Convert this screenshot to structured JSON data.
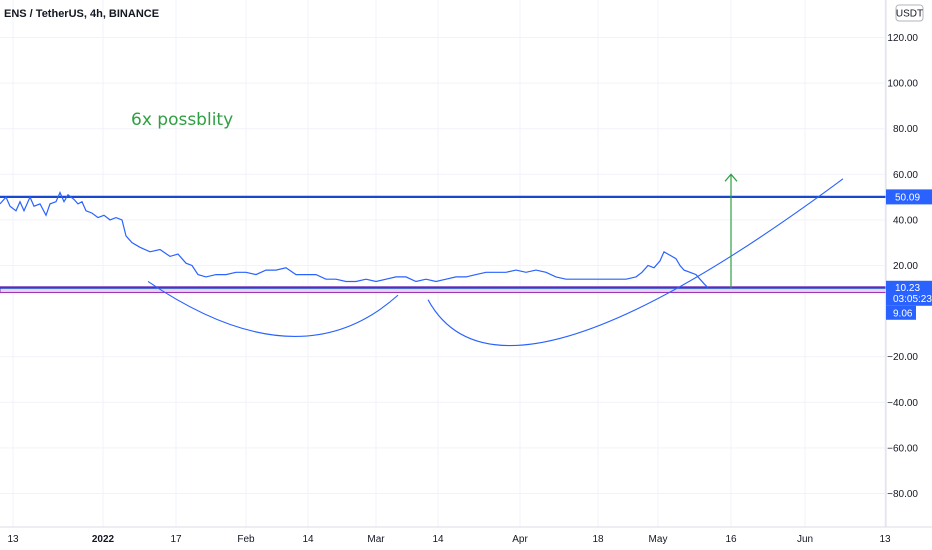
{
  "header": {
    "symbol_title": "ENS / TetherUS, 4h, BINANCE",
    "currency_button": "USDT"
  },
  "annotation": {
    "text": "6x possblity"
  },
  "price_tags": {
    "resistance": "50.09",
    "current": "10.23",
    "countdown": "03:05:23",
    "support": "9.06"
  },
  "colors": {
    "price_line": "#2962ff",
    "resistance_line": "#1848cc",
    "support_zone_fill": "#e6d6ee",
    "support_zone_border": "#9c27b0",
    "arrow": "#2ea043",
    "annotation_text": "#2ea043",
    "axis_text": "#131722",
    "tag_blue": "#2962ff"
  },
  "chart_data": {
    "type": "line",
    "title": "ENS / TetherUS, 4h, BINANCE",
    "xlabel": "",
    "ylabel": "",
    "ylim": [
      -90,
      130
    ],
    "y_ticks": [
      120,
      100,
      80,
      60,
      40,
      20,
      -20,
      -40,
      -60,
      -80
    ],
    "x_ticks": [
      "13",
      "2022",
      "17",
      "Feb",
      "14",
      "Mar",
      "14",
      "Apr",
      "18",
      "May",
      "16",
      "Jun",
      "13"
    ],
    "series": [
      {
        "points": [
          [
            0,
            47
          ],
          [
            6,
            50
          ],
          [
            10,
            46
          ],
          [
            16,
            44
          ],
          [
            20,
            48
          ],
          [
            24,
            44
          ],
          [
            30,
            50
          ],
          [
            34,
            46
          ],
          [
            40,
            47
          ],
          [
            46,
            42
          ],
          [
            50,
            47
          ],
          [
            56,
            48
          ],
          [
            60,
            52
          ],
          [
            64,
            48
          ],
          [
            68,
            51
          ],
          [
            74,
            49
          ],
          [
            78,
            47
          ],
          [
            82,
            48
          ],
          [
            86,
            44
          ],
          [
            92,
            43
          ],
          [
            98,
            41
          ],
          [
            104,
            42
          ],
          [
            110,
            40
          ],
          [
            116,
            41
          ],
          [
            122,
            40
          ],
          [
            126,
            33
          ],
          [
            132,
            30
          ],
          [
            140,
            28
          ],
          [
            150,
            26
          ],
          [
            160,
            27
          ],
          [
            170,
            24
          ],
          [
            178,
            25
          ],
          [
            186,
            21
          ],
          [
            192,
            20
          ],
          [
            198,
            16
          ],
          [
            206,
            15
          ],
          [
            216,
            16
          ],
          [
            226,
            16
          ],
          [
            236,
            17
          ],
          [
            246,
            17
          ],
          [
            256,
            16
          ],
          [
            266,
            18
          ],
          [
            276,
            18
          ],
          [
            286,
            19
          ],
          [
            296,
            16
          ],
          [
            306,
            16
          ],
          [
            316,
            16
          ],
          [
            326,
            14
          ],
          [
            336,
            14
          ],
          [
            346,
            13
          ],
          [
            356,
            13
          ],
          [
            366,
            14
          ],
          [
            376,
            13
          ],
          [
            386,
            14
          ],
          [
            396,
            15
          ],
          [
            406,
            15
          ],
          [
            416,
            13
          ],
          [
            426,
            14
          ],
          [
            436,
            13
          ],
          [
            446,
            14
          ],
          [
            456,
            15
          ],
          [
            466,
            15
          ],
          [
            476,
            16
          ],
          [
            486,
            17
          ],
          [
            496,
            17
          ],
          [
            506,
            17
          ],
          [
            516,
            18
          ],
          [
            526,
            17
          ],
          [
            536,
            18
          ],
          [
            546,
            17
          ],
          [
            556,
            15
          ],
          [
            566,
            14
          ],
          [
            576,
            14
          ],
          [
            586,
            14
          ],
          [
            596,
            14
          ],
          [
            606,
            14
          ],
          [
            616,
            14
          ],
          [
            626,
            14
          ],
          [
            636,
            15
          ],
          [
            642,
            17
          ],
          [
            648,
            20
          ],
          [
            654,
            19
          ],
          [
            660,
            22
          ],
          [
            664,
            26
          ],
          [
            668,
            25
          ],
          [
            672,
            24
          ],
          [
            676,
            23
          ],
          [
            680,
            20
          ],
          [
            684,
            18
          ],
          [
            690,
            17
          ],
          [
            696,
            16
          ],
          [
            700,
            14
          ],
          [
            704,
            12
          ],
          [
            708,
            10.2
          ]
        ]
      }
    ],
    "horizontal_lines": [
      50.09
    ],
    "support_zone": [
      9.06,
      10.23
    ],
    "arcs": [
      {
        "from": [
          148,
          13
        ],
        "bottom": [
          286,
          -11
        ],
        "to": [
          398,
          7
        ]
      },
      {
        "from": [
          428,
          5
        ],
        "bottom": [
          568,
          -11
        ],
        "to": [
          843,
          58
        ]
      }
    ],
    "arrow": {
      "x": 731,
      "from": 10,
      "to": 60
    }
  }
}
